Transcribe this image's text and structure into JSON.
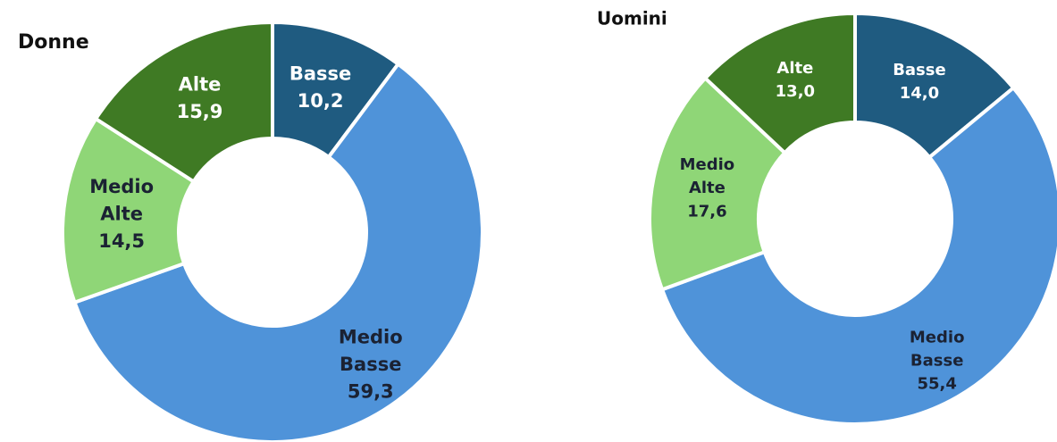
{
  "chart_data": [
    {
      "type": "donut",
      "title": "Donne",
      "categories": [
        "Basse",
        "Medio Basse",
        "Medio Alte",
        "Alte"
      ],
      "values": [
        10.2,
        59.3,
        14.5,
        15.9
      ],
      "value_labels": [
        "10,2",
        "59,3",
        "14,5",
        "15,9"
      ],
      "colors": [
        "#1f5b80",
        "#4f93d9",
        "#8fd677",
        "#3f7a24"
      ]
    },
    {
      "type": "donut",
      "title": "Uomini",
      "categories": [
        "Basse",
        "Medio Basse",
        "Medio Alte",
        "Alte"
      ],
      "values": [
        14.0,
        55.4,
        17.6,
        13.0
      ],
      "value_labels": [
        "14,0",
        "55,4",
        "17,6",
        "13,0"
      ],
      "colors": [
        "#1f5b80",
        "#4f93d9",
        "#8fd677",
        "#3f7a24"
      ]
    }
  ]
}
